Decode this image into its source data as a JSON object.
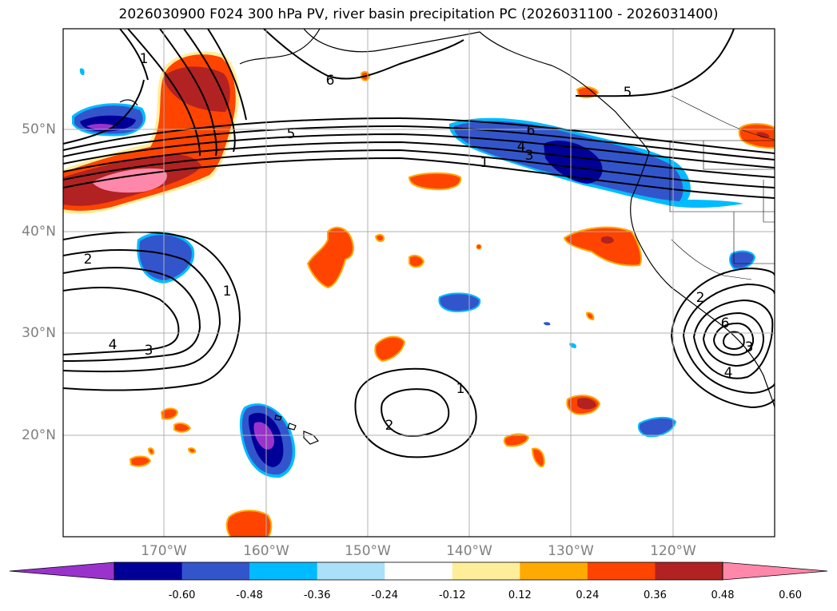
{
  "title": "2026030900 F024 300 hPa PV, river basin precipitation PC (2026031100 - 2026031400)",
  "lat_labels": [
    "50°N",
    "40°N",
    "30°N",
    "20°N"
  ],
  "lon_labels": [
    "170°W",
    "160°W",
    "150°W",
    "140°W",
    "130°W",
    "120°W"
  ],
  "colorbar": {
    "colors": [
      "#9933cc",
      "#000099",
      "#3355cc",
      "#00bbff",
      "#aae0f8",
      "#ffffff",
      "#ffee99",
      "#ffaa00",
      "#ff4400",
      "#b22222",
      "#ff88aa"
    ],
    "tick_labels": [
      "-0.60",
      "-0.48",
      "-0.36",
      "-0.24",
      "-0.12",
      "0.12",
      "0.24",
      "0.36",
      "0.48",
      "0.60"
    ]
  },
  "contour_labels": [
    "1",
    "6",
    "5",
    "5",
    "6",
    "4",
    "3",
    "1",
    "2",
    "1",
    "4",
    "3",
    "1",
    "2",
    "2",
    "6",
    "4",
    "3"
  ]
}
